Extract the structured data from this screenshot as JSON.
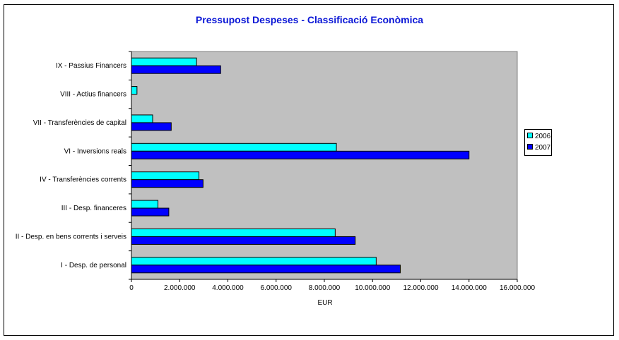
{
  "chart_data": {
    "type": "bar",
    "orientation": "horizontal",
    "title": "Pressupost Despeses - Classificació Econòmica",
    "xlabel": "EUR",
    "ylabel": "",
    "xlim": [
      0,
      16000000
    ],
    "x_ticks": [
      0,
      2000000,
      4000000,
      6000000,
      8000000,
      10000000,
      12000000,
      14000000,
      16000000
    ],
    "x_tick_labels": [
      "0",
      "2.000.000",
      "4.000.000",
      "6.000.000",
      "8.000.000",
      "10.000.000",
      "12.000.000",
      "14.000.000",
      "16.000.000"
    ],
    "categories": [
      "IX - Passius Financers",
      "VIII - Actius financers",
      "VII - Transferències de capital",
      "VI - Inversions reals",
      "IV - Transferències corrents",
      "III - Desp. financeres",
      "II - Desp. en bens corrents i serveis",
      "I - Desp. de personal"
    ],
    "series": [
      {
        "name": "2006",
        "color": "#00ffff",
        "values": [
          2700000,
          230000,
          880000,
          8500000,
          2800000,
          1100000,
          8450000,
          10150000
        ]
      },
      {
        "name": "2007",
        "color": "#0000ff",
        "values": [
          3700000,
          0,
          1650000,
          14000000,
          2970000,
          1550000,
          9280000,
          11150000
        ]
      }
    ],
    "plot_background": "#c0c0c0",
    "grid": false,
    "legend_position": "right"
  }
}
